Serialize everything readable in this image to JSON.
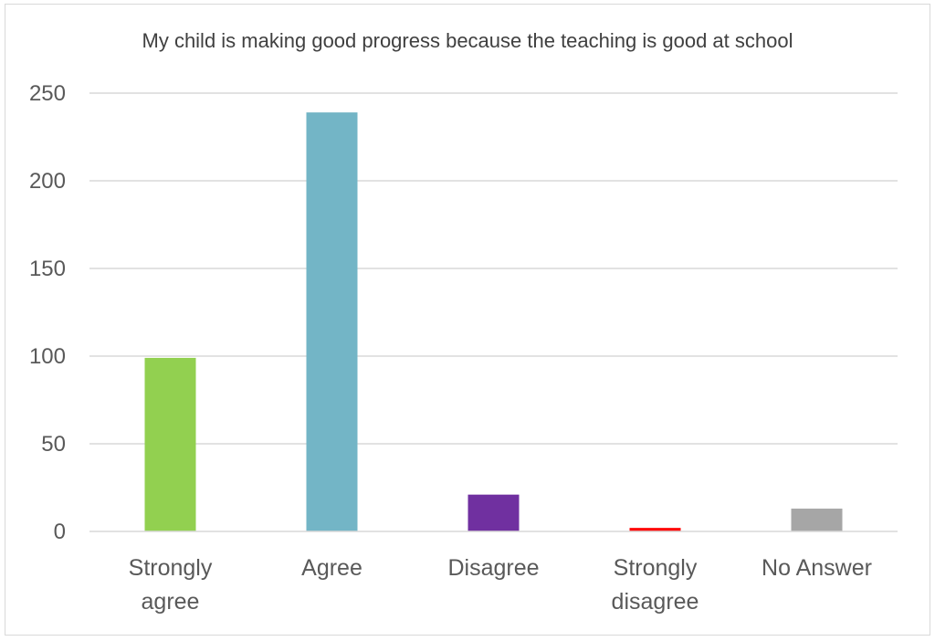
{
  "chart_data": {
    "type": "bar",
    "title": "My child is making good progress because the teaching is good at school",
    "xlabel": "",
    "ylabel": "",
    "categories": [
      [
        "Strongly",
        "agree"
      ],
      [
        "Agree"
      ],
      [
        "Disagree"
      ],
      [
        "Strongly",
        "disagree"
      ],
      [
        "No Answer"
      ]
    ],
    "values": [
      99,
      239,
      21,
      2,
      13
    ],
    "colors": [
      "#92d050",
      "#73b5c6",
      "#7030a0",
      "#ff0000",
      "#a6a6a6"
    ],
    "ylim": [
      0,
      250
    ],
    "yticks": [
      0,
      50,
      100,
      150,
      200,
      250
    ],
    "grid": true,
    "legend": "none"
  }
}
